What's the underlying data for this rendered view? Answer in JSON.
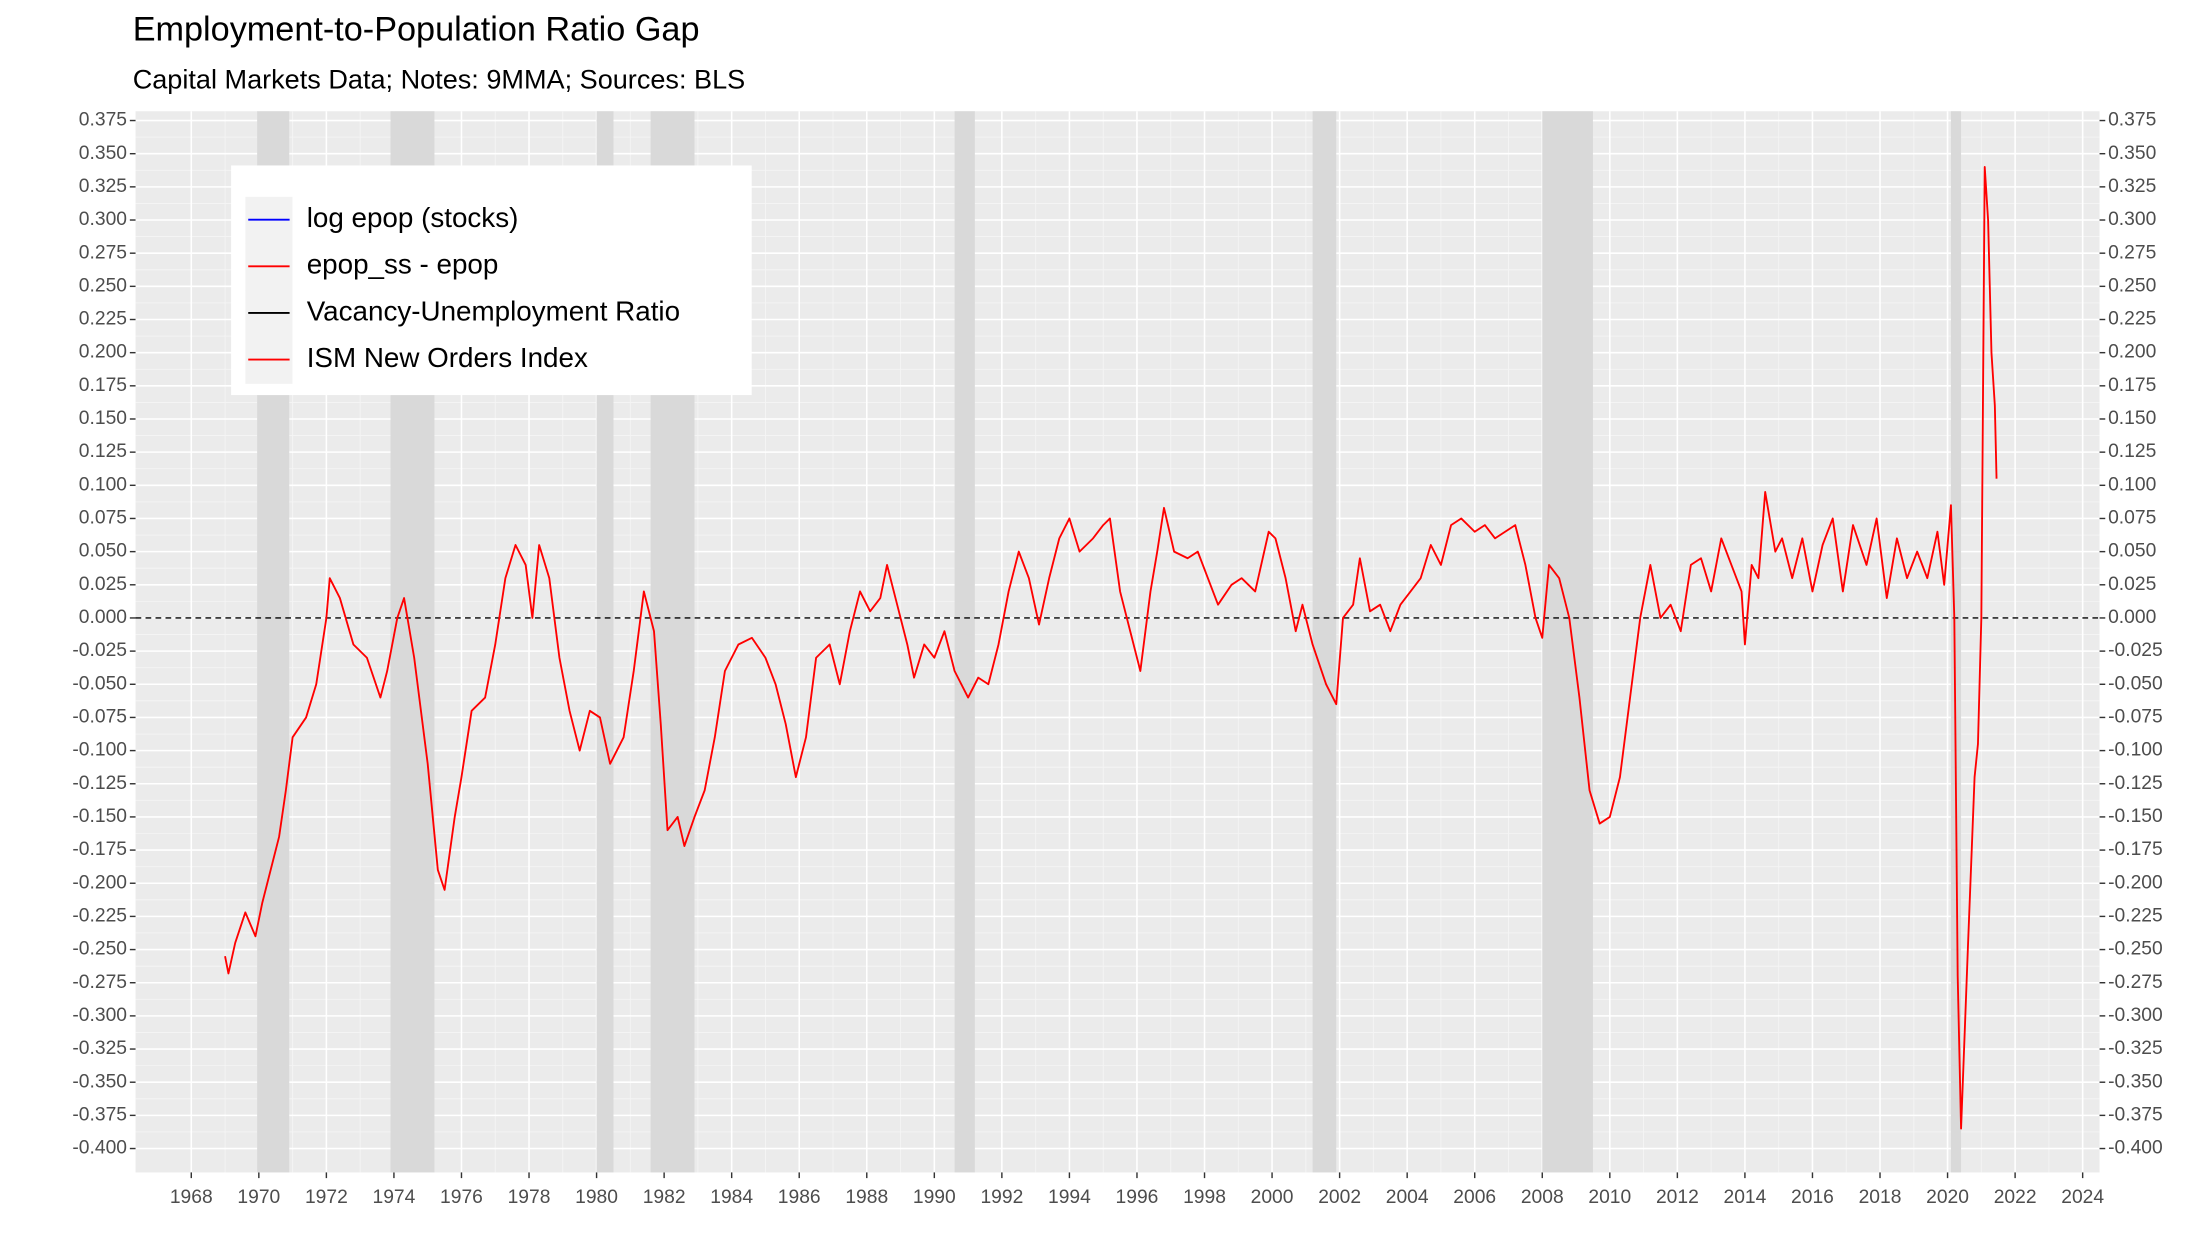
{
  "chart_data": {
    "type": "line",
    "title": "Employment-to-Population Ratio Gap",
    "subtitle": "Capital Markets Data; Notes: 9MMA; Sources: BLS",
    "color": "#ff0000",
    "legend": [
      {
        "name": "log epop (stocks)",
        "color": "#0000ff"
      },
      {
        "name": "epop_ss - epop",
        "color": "#ff0000"
      },
      {
        "name": "Vacancy-Unemployment Ratio",
        "color": "#000000"
      },
      {
        "name": "ISM New Orders Index",
        "color": "#ff0000"
      }
    ],
    "xlim": [
      1966.35,
      2024.5
    ],
    "ylim": [
      -0.418,
      0.382
    ],
    "xticks": [
      1968,
      1970,
      1972,
      1974,
      1976,
      1978,
      1980,
      1982,
      1984,
      1986,
      1988,
      1990,
      1992,
      1994,
      1996,
      1998,
      2000,
      2002,
      2004,
      2006,
      2008,
      2010,
      2012,
      2014,
      2016,
      2018,
      2020,
      2022,
      2024
    ],
    "yticks": [
      {
        "value": 0.375,
        "label": "0.375"
      },
      {
        "value": 0.35,
        "label": "0.350"
      },
      {
        "value": 0.325,
        "label": "0.325"
      },
      {
        "value": 0.3,
        "label": "0.300"
      },
      {
        "value": 0.275,
        "label": "0.275"
      },
      {
        "value": 0.25,
        "label": "0.250"
      },
      {
        "value": 0.225,
        "label": "0.225"
      },
      {
        "value": 0.2,
        "label": "0.200"
      },
      {
        "value": 0.175,
        "label": "0.175"
      },
      {
        "value": 0.15,
        "label": "0.150"
      },
      {
        "value": 0.125,
        "label": "0.125"
      },
      {
        "value": 0.1,
        "label": "0.100"
      },
      {
        "value": 0.075,
        "label": "0.075"
      },
      {
        "value": 0.05,
        "label": "0.050"
      },
      {
        "value": 0.025,
        "label": "0.025"
      },
      {
        "value": 0,
        "label": "0.000"
      },
      {
        "value": -0.025,
        "label": "-0.025"
      },
      {
        "value": -0.05,
        "label": "-0.050"
      },
      {
        "value": -0.075,
        "label": "-0.075"
      },
      {
        "value": -0.1,
        "label": "-0.100"
      },
      {
        "value": -0.125,
        "label": "-0.125"
      },
      {
        "value": -0.15,
        "label": "-0.150"
      },
      {
        "value": -0.175,
        "label": "-0.175"
      },
      {
        "value": -0.2,
        "label": "-0.200"
      },
      {
        "value": -0.225,
        "label": "-0.225"
      },
      {
        "value": -0.25,
        "label": "-0.250"
      },
      {
        "value": -0.275,
        "label": "-0.275"
      },
      {
        "value": -0.3,
        "label": "-0.300"
      },
      {
        "value": -0.325,
        "label": "-0.325"
      },
      {
        "value": -0.35,
        "label": "-0.350"
      },
      {
        "value": -0.375,
        "label": "-0.375"
      },
      {
        "value": -0.4,
        "label": "-0.400"
      }
    ],
    "grid": true,
    "hline": 0,
    "shading": [
      [
        1969.95,
        1970.9
      ],
      [
        1973.9,
        1975.2
      ],
      [
        1980.0,
        1980.5
      ],
      [
        1981.6,
        1982.9
      ],
      [
        1990.6,
        1991.2
      ],
      [
        2001.2,
        2001.9
      ],
      [
        2008.0,
        2009.5
      ],
      [
        2020.1,
        2020.4
      ]
    ],
    "x": [
      1969.0,
      1969.1,
      1969.3,
      1969.6,
      1969.9,
      1970.1,
      1970.4,
      1970.6,
      1970.8,
      1971.0,
      1971.4,
      1971.7,
      1972.0,
      1972.1,
      1972.4,
      1972.8,
      1973.2,
      1973.6,
      1973.8,
      1974.1,
      1974.3,
      1974.6,
      1975.0,
      1975.3,
      1975.5,
      1975.8,
      1976.0,
      1976.3,
      1976.7,
      1977.0,
      1977.3,
      1977.6,
      1977.9,
      1978.1,
      1978.3,
      1978.6,
      1978.9,
      1979.2,
      1979.5,
      1979.8,
      1980.1,
      1980.4,
      1980.8,
      1981.1,
      1981.4,
      1981.7,
      1981.9,
      1982.1,
      1982.4,
      1982.6,
      1982.9,
      1983.2,
      1983.5,
      1983.8,
      1984.2,
      1984.6,
      1985.0,
      1985.3,
      1985.6,
      1985.9,
      1986.2,
      1986.5,
      1986.9,
      1987.2,
      1987.5,
      1987.8,
      1988.1,
      1988.4,
      1988.6,
      1988.9,
      1989.2,
      1989.4,
      1989.7,
      1990.0,
      1990.3,
      1990.6,
      1991.0,
      1991.3,
      1991.6,
      1991.9,
      1992.2,
      1992.5,
      1992.8,
      1993.1,
      1993.4,
      1993.7,
      1994.0,
      1994.3,
      1994.7,
      1995.0,
      1995.2,
      1995.5,
      1995.8,
      1996.1,
      1996.4,
      1996.6,
      1996.8,
      1997.1,
      1997.5,
      1997.8,
      1998.1,
      1998.4,
      1998.8,
      1999.1,
      1999.5,
      1999.9,
      2000.1,
      2000.4,
      2000.7,
      2000.9,
      2001.2,
      2001.6,
      2001.9,
      2002.1,
      2002.4,
      2002.6,
      2002.9,
      2003.2,
      2003.5,
      2003.8,
      2004.1,
      2004.4,
      2004.7,
      2005.0,
      2005.3,
      2005.6,
      2006.0,
      2006.3,
      2006.6,
      2006.9,
      2007.2,
      2007.5,
      2007.8,
      2008.0,
      2008.2,
      2008.5,
      2008.8,
      2009.1,
      2009.4,
      2009.7,
      2010.0,
      2010.3,
      2010.6,
      2010.9,
      2011.2,
      2011.5,
      2011.8,
      2012.1,
      2012.4,
      2012.7,
      2013.0,
      2013.3,
      2013.6,
      2013.9,
      2014.0,
      2014.2,
      2014.4,
      2014.6,
      2014.9,
      2015.1,
      2015.4,
      2015.7,
      2016.0,
      2016.3,
      2016.6,
      2016.9,
      2017.2,
      2017.6,
      2017.9,
      2018.2,
      2018.5,
      2018.8,
      2019.1,
      2019.4,
      2019.7,
      2019.9,
      2020.1,
      2020.2,
      2020.3,
      2020.4,
      2020.6,
      2020.8,
      2020.9,
      2021.0,
      2021.1,
      2021.2,
      2021.3,
      2021.4,
      2021.45
    ],
    "values": [
      -0.255,
      -0.268,
      -0.245,
      -0.222,
      -0.24,
      -0.215,
      -0.185,
      -0.165,
      -0.13,
      -0.09,
      -0.075,
      -0.05,
      0.0,
      0.03,
      0.015,
      -0.02,
      -0.03,
      -0.06,
      -0.04,
      0.0,
      0.015,
      -0.03,
      -0.11,
      -0.19,
      -0.205,
      -0.15,
      -0.12,
      -0.07,
      -0.06,
      -0.02,
      0.03,
      0.055,
      0.04,
      0.0,
      0.055,
      0.03,
      -0.03,
      -0.07,
      -0.1,
      -0.07,
      -0.075,
      -0.11,
      -0.09,
      -0.04,
      0.02,
      -0.01,
      -0.08,
      -0.16,
      -0.15,
      -0.172,
      -0.15,
      -0.13,
      -0.09,
      -0.04,
      -0.02,
      -0.015,
      -0.03,
      -0.05,
      -0.08,
      -0.12,
      -0.09,
      -0.03,
      -0.02,
      -0.05,
      -0.01,
      0.02,
      0.005,
      0.015,
      0.04,
      0.01,
      -0.02,
      -0.045,
      -0.02,
      -0.03,
      -0.01,
      -0.04,
      -0.06,
      -0.045,
      -0.05,
      -0.02,
      0.02,
      0.05,
      0.03,
      -0.005,
      0.03,
      0.06,
      0.075,
      0.05,
      0.06,
      0.07,
      0.075,
      0.02,
      -0.01,
      -0.04,
      0.02,
      0.05,
      0.083,
      0.05,
      0.045,
      0.05,
      0.03,
      0.01,
      0.025,
      0.03,
      0.02,
      0.065,
      0.06,
      0.03,
      -0.01,
      0.01,
      -0.02,
      -0.05,
      -0.065,
      0.0,
      0.01,
      0.045,
      0.005,
      0.01,
      -0.01,
      0.01,
      0.02,
      0.03,
      0.055,
      0.04,
      0.07,
      0.075,
      0.065,
      0.07,
      0.06,
      0.065,
      0.07,
      0.04,
      0.0,
      -0.015,
      0.04,
      0.03,
      0.0,
      -0.06,
      -0.13,
      -0.155,
      -0.15,
      -0.12,
      -0.06,
      0.0,
      0.04,
      0.0,
      0.01,
      -0.01,
      0.04,
      0.045,
      0.02,
      0.06,
      0.04,
      0.02,
      -0.02,
      0.04,
      0.03,
      0.095,
      0.05,
      0.06,
      0.03,
      0.06,
      0.02,
      0.055,
      0.075,
      0.02,
      0.07,
      0.04,
      0.075,
      0.015,
      0.06,
      0.03,
      0.05,
      0.03,
      0.065,
      0.025,
      0.085,
      0.0,
      -0.27,
      -0.385,
      -0.25,
      -0.12,
      -0.095,
      0.0,
      0.34,
      0.3,
      0.2,
      0.16,
      0.105
    ]
  }
}
